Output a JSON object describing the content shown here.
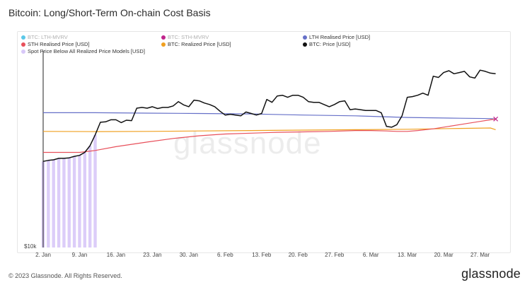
{
  "title": "Bitcoin: Long/Short-Term On-chain Cost Basis",
  "watermark": "glassnode",
  "footer": {
    "copyright": "© 2023 Glassnode. All Rights Reserved.",
    "brand": "glassnode"
  },
  "legend": [
    {
      "label": "BTC: LTH-MVRV",
      "color": "#5bc8e8",
      "muted": true
    },
    {
      "label": "BTC: STH-MVRV",
      "color": "#c0248c",
      "muted": true
    },
    {
      "label": "LTH Realised Price [USD]",
      "color": "#6670c8",
      "muted": false
    },
    {
      "label": "STH Realised Price [USD]",
      "color": "#e8505b",
      "muted": false
    },
    {
      "label": "BTC: Realized Price [USD]",
      "color": "#f0a020",
      "muted": false
    },
    {
      "label": "BTC: Price [USD]",
      "color": "#111111",
      "muted": false
    },
    {
      "label": "Spot Price Below All Realized Price Models [USD]",
      "color": "#d8c8f8",
      "muted": false
    }
  ],
  "chart_data": {
    "type": "line",
    "title": "Bitcoin: Long/Short-Term On-chain Cost Basis",
    "y_tick_label": "$10k",
    "x_ticks": [
      "2. Jan",
      "9. Jan",
      "16. Jan",
      "23. Jan",
      "30. Jan",
      "6. Feb",
      "13. Feb",
      "20. Feb",
      "27. Feb",
      "6. Mar",
      "13. Mar",
      "20. Mar",
      "27. Mar"
    ],
    "x_days": [
      0,
      7,
      14,
      21,
      28,
      35,
      42,
      49,
      56,
      63,
      70,
      77,
      84
    ],
    "ylim": [
      10000,
      30000
    ],
    "y_scale": "log",
    "series": [
      {
        "name": "BTC: Price [USD]",
        "color": "#111111",
        "x": [
          0,
          1,
          2,
          3,
          4,
          5,
          6,
          7,
          8,
          9,
          10,
          11,
          12,
          13,
          14,
          15,
          16,
          17,
          18,
          19,
          20,
          21,
          22,
          23,
          24,
          25,
          26,
          27,
          28,
          29,
          30,
          31,
          32,
          33,
          34,
          35,
          36,
          37,
          38,
          39,
          40,
          41,
          42,
          43,
          44,
          45,
          46,
          47,
          48,
          49,
          50,
          51,
          52,
          53,
          54,
          55,
          56,
          57,
          58,
          59,
          60,
          61,
          62,
          63,
          64,
          65,
          66,
          67,
          68,
          69,
          70,
          71,
          72,
          73,
          74,
          75,
          76,
          77,
          78,
          79,
          80,
          81,
          82,
          83,
          84,
          85,
          86,
          87
        ],
        "values": [
          16600,
          16700,
          16750,
          16900,
          16900,
          16950,
          17100,
          17200,
          17500,
          18200,
          19400,
          20900,
          20950,
          21200,
          21200,
          20850,
          21150,
          21100,
          22700,
          22800,
          22700,
          22900,
          22650,
          22800,
          22800,
          23000,
          23600,
          23150,
          22900,
          23800,
          23700,
          23400,
          23200,
          22900,
          22300,
          21800,
          21900,
          21800,
          21700,
          22200,
          22000,
          21800,
          22000,
          23900,
          23500,
          24400,
          24500,
          24200,
          24500,
          24500,
          24200,
          23600,
          23500,
          23500,
          23200,
          22900,
          23200,
          23600,
          23700,
          22500,
          22600,
          22500,
          22400,
          22400,
          22400,
          22100,
          20400,
          20300,
          20600,
          21700,
          24200,
          24300,
          24500,
          24800,
          24500,
          27400,
          27200,
          28000,
          28300,
          27800,
          28000,
          28200,
          27300,
          27100,
          28400,
          28200,
          27900,
          27800
        ]
      },
      {
        "name": "LTH Realised Price [USD]",
        "color": "#6670c8",
        "x": [
          0,
          10,
          20,
          30,
          40,
          50,
          60,
          70,
          80,
          86,
          87
        ],
        "values": [
          22100,
          22100,
          22050,
          22000,
          21950,
          21800,
          21700,
          21500,
          21400,
          21350,
          21300
        ]
      },
      {
        "name": "STH Realised Price [USD]",
        "color": "#e8505b",
        "x": [
          0,
          7,
          10,
          14,
          20,
          25,
          30,
          35,
          40,
          45,
          50,
          55,
          60,
          63,
          66,
          68,
          70,
          72,
          75,
          78,
          81,
          84,
          86,
          87
        ],
        "values": [
          17500,
          17500,
          17700,
          18100,
          18600,
          19000,
          19300,
          19500,
          19600,
          19700,
          19750,
          19800,
          19900,
          19900,
          19850,
          19800,
          19800,
          19900,
          20100,
          20400,
          20700,
          21000,
          21200,
          21300
        ]
      },
      {
        "name": "BTC: Realized Price [USD]",
        "color": "#f0a020",
        "x": [
          0,
          10,
          20,
          30,
          40,
          50,
          60,
          70,
          80,
          86,
          87
        ],
        "values": [
          19800,
          19780,
          19800,
          19850,
          19900,
          19950,
          20000,
          20050,
          20150,
          20200,
          20000
        ]
      }
    ],
    "highlight": {
      "name": "Spot Price Below All Realized Price Models [USD]",
      "color": "#d8c8f8",
      "x_start": 0,
      "x_end": 10
    },
    "grid": false
  }
}
